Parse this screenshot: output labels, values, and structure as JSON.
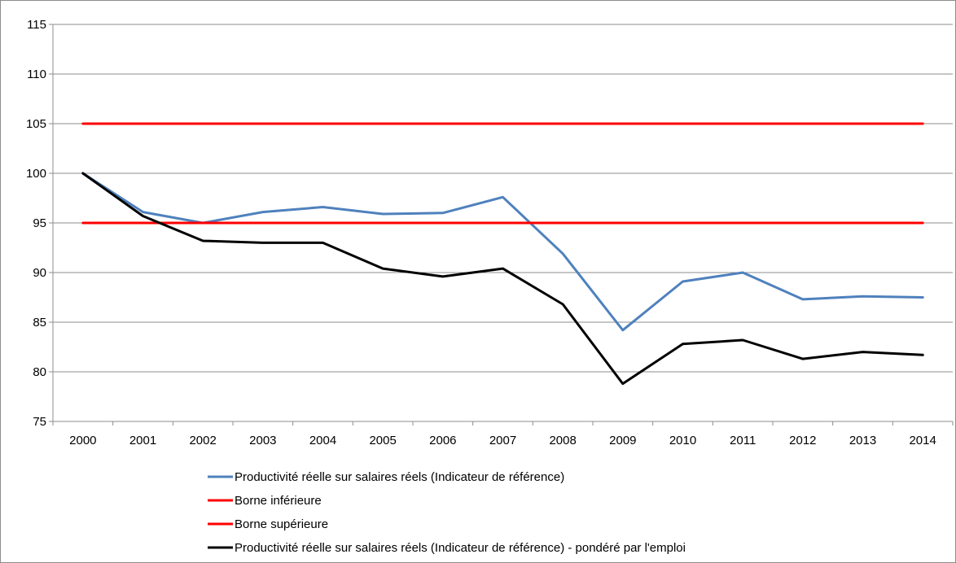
{
  "chart_data": {
    "type": "line",
    "title": "",
    "xlabel": "",
    "ylabel": "",
    "x": [
      "2000",
      "2001",
      "2002",
      "2003",
      "2004",
      "2005",
      "2006",
      "2007",
      "2008",
      "2009",
      "2010",
      "2011",
      "2012",
      "2013",
      "2014"
    ],
    "ylim": [
      75,
      115
    ],
    "yticks": [
      75,
      80,
      85,
      90,
      95,
      100,
      105,
      110,
      115
    ],
    "grid": "horizontal",
    "legend_position": "bottom",
    "series": [
      {
        "name": "Productivité réelle sur salaires réels (Indicateur de référence)",
        "color": "#4f81bd",
        "values": [
          100,
          96.1,
          95.0,
          96.1,
          96.6,
          95.9,
          96.0,
          97.6,
          91.9,
          84.2,
          89.1,
          90.0,
          87.3,
          87.6,
          87.5
        ]
      },
      {
        "name": "Borne inférieure",
        "color": "#ff0000",
        "values": [
          95,
          95,
          95,
          95,
          95,
          95,
          95,
          95,
          95,
          95,
          95,
          95,
          95,
          95,
          95
        ]
      },
      {
        "name": "Borne supérieure",
        "color": "#ff0000",
        "values": [
          105,
          105,
          105,
          105,
          105,
          105,
          105,
          105,
          105,
          105,
          105,
          105,
          105,
          105,
          105
        ]
      },
      {
        "name": "Productivité réelle sur salaires réels (Indicateur de référence) - pondéré par l'emploi",
        "color": "#000000",
        "values": [
          100,
          95.7,
          93.2,
          93.0,
          93.0,
          90.4,
          89.6,
          90.4,
          86.8,
          78.8,
          82.8,
          83.2,
          81.3,
          82.0,
          81.7
        ]
      }
    ]
  }
}
